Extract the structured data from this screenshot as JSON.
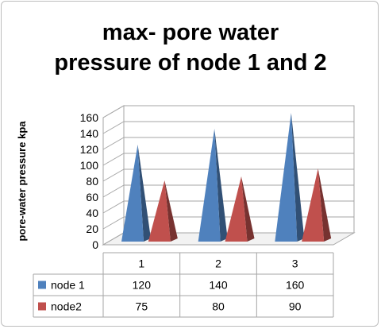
{
  "chart_data": {
    "type": "bar",
    "title_lines": [
      "max- pore water",
      "pressure of node 1 and 2"
    ],
    "xlabel": "",
    "ylabel": "pore-water pressure kpa",
    "categories": [
      "1",
      "2",
      "3"
    ],
    "series": [
      {
        "name": "node 1",
        "values": [
          120,
          140,
          160
        ],
        "color": "#4f81bd"
      },
      {
        "name": "node2",
        "values": [
          75,
          80,
          90
        ],
        "color": "#c0504d"
      }
    ],
    "ylim": [
      0,
      160
    ],
    "yticks": [
      0,
      20,
      40,
      60,
      80,
      100,
      120,
      140,
      160
    ],
    "grid": true,
    "data_table": true,
    "bar_shape": "3d-pyramid"
  }
}
